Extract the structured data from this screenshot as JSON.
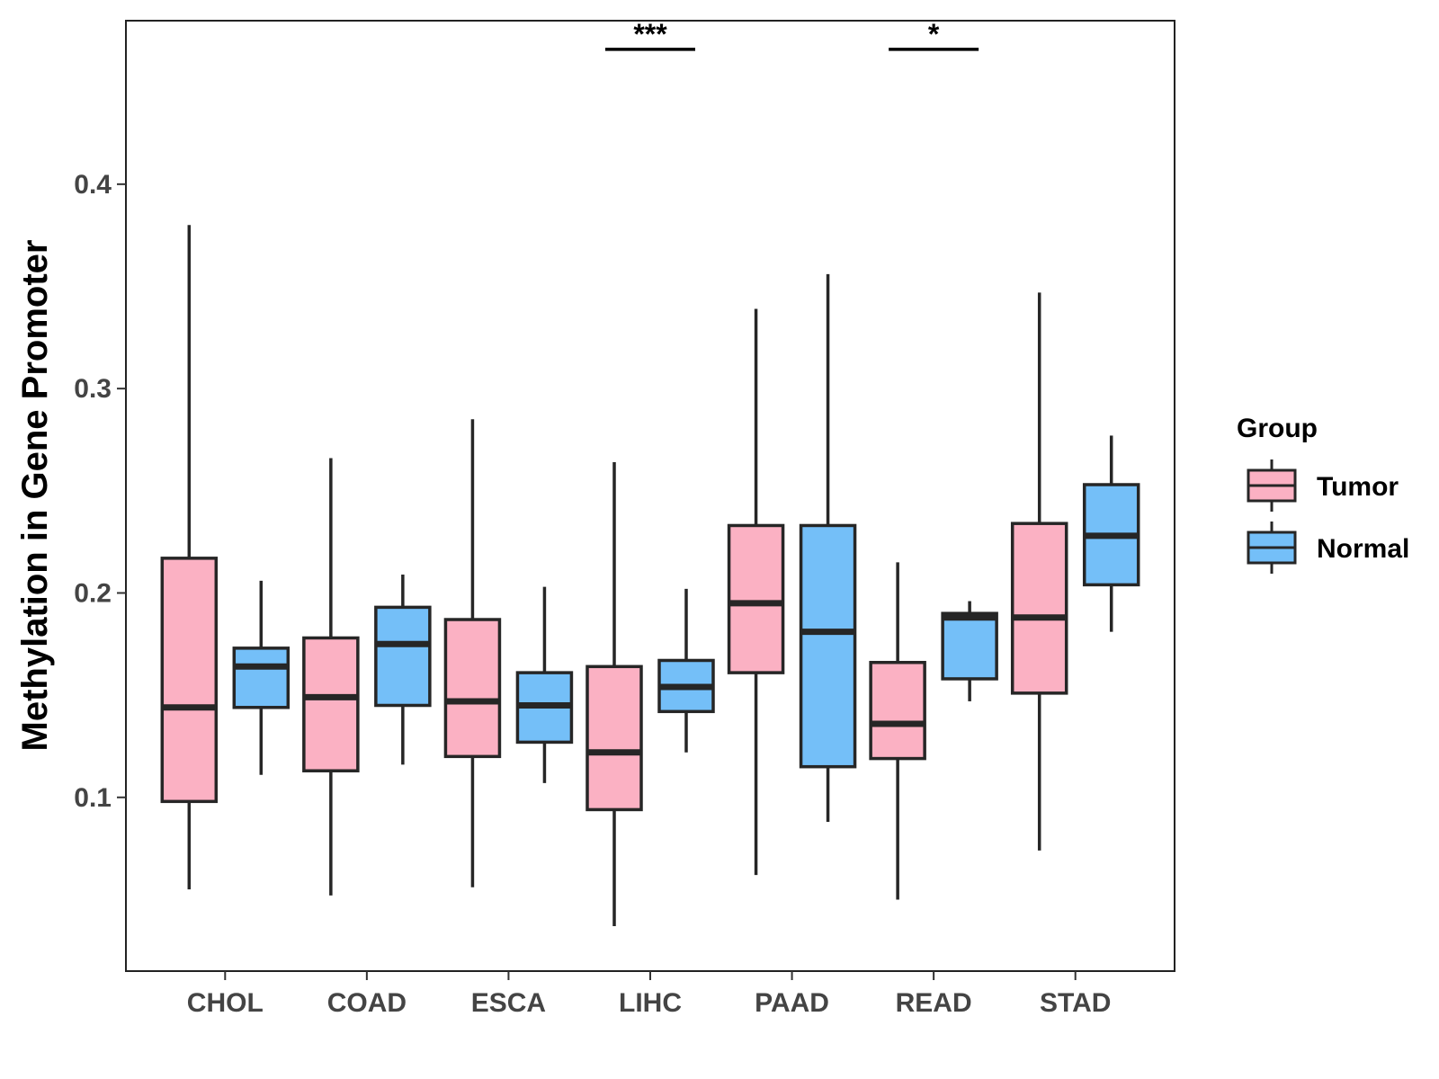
{
  "chart_data": {
    "type": "boxplot",
    "ylabel": "Methylation in Gene Promoter",
    "xlabel": "",
    "ylim": [
      0.015,
      0.48
    ],
    "y_ticks": [
      "0.1",
      "0.2",
      "0.3",
      "0.4"
    ],
    "categories": [
      "CHOL",
      "COAD",
      "ESCA",
      "LIHC",
      "PAAD",
      "READ",
      "STAD"
    ],
    "legend": {
      "title": "Group",
      "position": "right",
      "entries": [
        {
          "name": "Tumor",
          "color": "#FBB1C3"
        },
        {
          "name": "Normal",
          "color": "#74BFF8"
        }
      ]
    },
    "series": [
      {
        "name": "Tumor",
        "color": "#FBB1C3",
        "boxes": [
          {
            "min": 0.055,
            "q1": 0.098,
            "median": 0.144,
            "q3": 0.217,
            "max": 0.38
          },
          {
            "min": 0.052,
            "q1": 0.113,
            "median": 0.149,
            "q3": 0.178,
            "max": 0.266
          },
          {
            "min": 0.056,
            "q1": 0.12,
            "median": 0.147,
            "q3": 0.187,
            "max": 0.285
          },
          {
            "min": 0.037,
            "q1": 0.094,
            "median": 0.122,
            "q3": 0.164,
            "max": 0.264
          },
          {
            "min": 0.062,
            "q1": 0.161,
            "median": 0.195,
            "q3": 0.233,
            "max": 0.339
          },
          {
            "min": 0.05,
            "q1": 0.119,
            "median": 0.136,
            "q3": 0.166,
            "max": 0.215
          },
          {
            "min": 0.074,
            "q1": 0.151,
            "median": 0.188,
            "q3": 0.234,
            "max": 0.347
          }
        ]
      },
      {
        "name": "Normal",
        "color": "#74BFF8",
        "boxes": [
          {
            "min": 0.111,
            "q1": 0.144,
            "median": 0.164,
            "q3": 0.173,
            "max": 0.206
          },
          {
            "min": 0.116,
            "q1": 0.145,
            "median": 0.175,
            "q3": 0.193,
            "max": 0.209
          },
          {
            "min": 0.107,
            "q1": 0.127,
            "median": 0.145,
            "q3": 0.161,
            "max": 0.203
          },
          {
            "min": 0.122,
            "q1": 0.142,
            "median": 0.154,
            "q3": 0.167,
            "max": 0.202
          },
          {
            "min": 0.088,
            "q1": 0.115,
            "median": 0.181,
            "q3": 0.233,
            "max": 0.356
          },
          {
            "min": 0.147,
            "q1": 0.158,
            "median": 0.188,
            "q3": 0.19,
            "max": 0.196
          },
          {
            "min": 0.181,
            "q1": 0.204,
            "median": 0.228,
            "q3": 0.253,
            "max": 0.277
          }
        ]
      }
    ],
    "annotations": [
      {
        "category": "LIHC",
        "label": "***",
        "y": 0.466
      },
      {
        "category": "READ",
        "label": "*",
        "y": 0.466
      }
    ]
  }
}
